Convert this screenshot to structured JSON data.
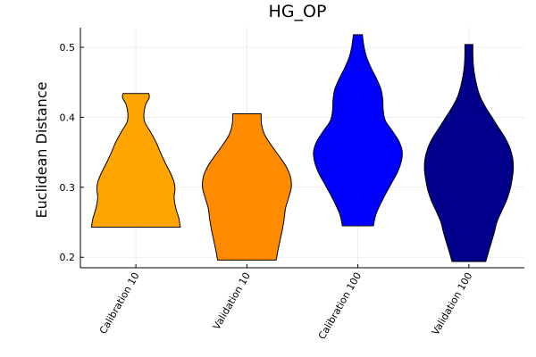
{
  "chart_data": {
    "type": "violin",
    "title": "HG_OP",
    "xlabel": "",
    "ylabel": "Euclidean Distance",
    "ylim": [
      0.185,
      0.528
    ],
    "yticks": [
      0.2,
      0.3,
      0.4,
      0.5
    ],
    "ytick_labels": [
      "0.2",
      "0.3",
      "0.4",
      "0.5"
    ],
    "grid": true,
    "categories": [
      "Calibration 10",
      "Validation 10",
      "Calibration 100",
      "Validation 100"
    ],
    "series": [
      {
        "category": "Calibration 10",
        "color": "#ffa500",
        "min": 0.243,
        "max": 0.434,
        "density": [
          [
            0.243,
            1.0
          ],
          [
            0.255,
            0.97
          ],
          [
            0.27,
            0.9
          ],
          [
            0.285,
            0.86
          ],
          [
            0.297,
            0.88
          ],
          [
            0.307,
            0.86
          ],
          [
            0.32,
            0.78
          ],
          [
            0.335,
            0.66
          ],
          [
            0.35,
            0.55
          ],
          [
            0.365,
            0.45
          ],
          [
            0.38,
            0.32
          ],
          [
            0.393,
            0.2
          ],
          [
            0.405,
            0.18
          ],
          [
            0.418,
            0.22
          ],
          [
            0.428,
            0.3
          ],
          [
            0.434,
            0.29
          ]
        ]
      },
      {
        "category": "Validation 10",
        "color": "#ff8c00",
        "min": 0.196,
        "max": 0.405,
        "density": [
          [
            0.196,
            0.66
          ],
          [
            0.21,
            0.7
          ],
          [
            0.225,
            0.75
          ],
          [
            0.24,
            0.8
          ],
          [
            0.255,
            0.84
          ],
          [
            0.27,
            0.87
          ],
          [
            0.285,
            0.94
          ],
          [
            0.3,
            1.0
          ],
          [
            0.315,
            0.98
          ],
          [
            0.33,
            0.88
          ],
          [
            0.345,
            0.72
          ],
          [
            0.36,
            0.55
          ],
          [
            0.375,
            0.4
          ],
          [
            0.39,
            0.33
          ],
          [
            0.405,
            0.32
          ]
        ]
      },
      {
        "category": "Calibration 100",
        "color": "#0000ff",
        "min": 0.245,
        "max": 0.518,
        "density": [
          [
            0.245,
            0.35
          ],
          [
            0.26,
            0.4
          ],
          [
            0.275,
            0.5
          ],
          [
            0.29,
            0.62
          ],
          [
            0.305,
            0.75
          ],
          [
            0.32,
            0.88
          ],
          [
            0.335,
            0.97
          ],
          [
            0.35,
            1.0
          ],
          [
            0.365,
            0.93
          ],
          [
            0.38,
            0.78
          ],
          [
            0.395,
            0.62
          ],
          [
            0.41,
            0.57
          ],
          [
            0.425,
            0.56
          ],
          [
            0.44,
            0.52
          ],
          [
            0.455,
            0.42
          ],
          [
            0.47,
            0.3
          ],
          [
            0.485,
            0.2
          ],
          [
            0.5,
            0.14
          ],
          [
            0.518,
            0.1
          ]
        ]
      },
      {
        "category": "Validation 100",
        "color": "#00008b",
        "min": 0.194,
        "max": 0.504,
        "density": [
          [
            0.194,
            0.38
          ],
          [
            0.205,
            0.43
          ],
          [
            0.22,
            0.5
          ],
          [
            0.235,
            0.57
          ],
          [
            0.25,
            0.63
          ],
          [
            0.265,
            0.73
          ],
          [
            0.28,
            0.84
          ],
          [
            0.295,
            0.92
          ],
          [
            0.31,
            0.97
          ],
          [
            0.325,
            1.0
          ],
          [
            0.34,
            0.99
          ],
          [
            0.355,
            0.93
          ],
          [
            0.37,
            0.82
          ],
          [
            0.385,
            0.67
          ],
          [
            0.4,
            0.52
          ],
          [
            0.415,
            0.37
          ],
          [
            0.43,
            0.25
          ],
          [
            0.445,
            0.18
          ],
          [
            0.46,
            0.13
          ],
          [
            0.475,
            0.1
          ],
          [
            0.49,
            0.09
          ],
          [
            0.504,
            0.09
          ]
        ]
      }
    ]
  }
}
